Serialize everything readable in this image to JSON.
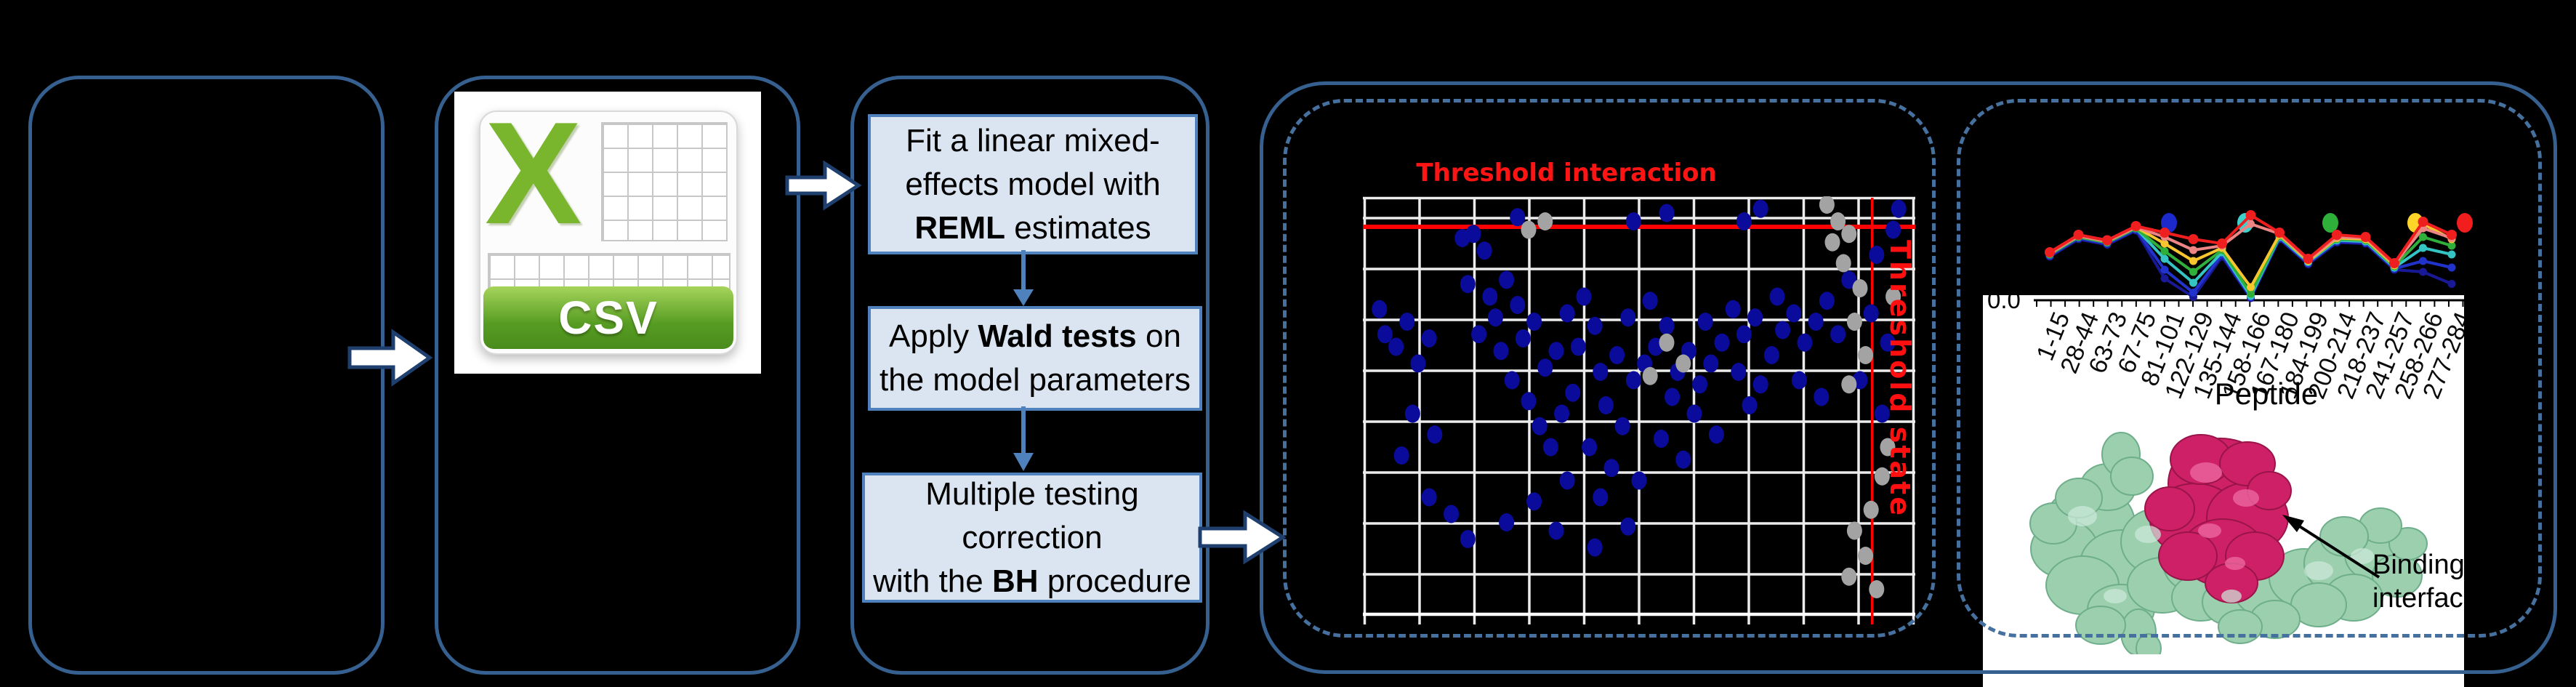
{
  "csv_icon": {
    "x_letter": "X",
    "label": "CSV"
  },
  "steps": {
    "step1": {
      "pre": "Fit a linear mixed-effects model with ",
      "bold": "REML",
      "post": " estimates"
    },
    "step2": {
      "pre": "Apply ",
      "bold": "Wald tests",
      "post": " on the model parameters"
    },
    "step3": {
      "line1": "Multiple testing",
      "line2": "correction",
      "line3_pre": "with the ",
      "line3_bold": "BH",
      "line3_post": " procedure"
    }
  },
  "interaction_panel": {
    "title": "Threshold interaction",
    "state_label": "Threshold state",
    "chart_data": {
      "type": "scatter",
      "grid": true,
      "background": "#000000",
      "threshold_lines": {
        "color": "#ff0000",
        "horizontal_y_pct": 7.3,
        "vertical_x_pct": 92.2
      },
      "series": [
        {
          "name": "blue-points",
          "color": "#0b0b9b",
          "points_pct": [
            [
              3,
              27
            ],
            [
              4,
              33
            ],
            [
              8,
              30
            ],
            [
              6,
              36
            ],
            [
              10,
              40
            ],
            [
              12,
              34
            ],
            [
              9,
              52
            ],
            [
              13,
              57
            ],
            [
              7,
              62
            ],
            [
              18,
              10
            ],
            [
              20,
              9
            ],
            [
              22,
              13
            ],
            [
              19,
              21
            ],
            [
              23,
              24
            ],
            [
              26,
              20
            ],
            [
              24,
              29
            ],
            [
              28,
              26
            ],
            [
              21,
              33
            ],
            [
              25,
              37
            ],
            [
              29,
              34
            ],
            [
              31,
              30
            ],
            [
              27,
              44
            ],
            [
              30,
              49
            ],
            [
              33,
              41
            ],
            [
              35,
              37
            ],
            [
              32,
              55
            ],
            [
              36,
              52
            ],
            [
              34,
              60
            ],
            [
              38,
              47
            ],
            [
              37,
              28
            ],
            [
              40,
              24
            ],
            [
              42,
              31
            ],
            [
              39,
              36
            ],
            [
              43,
              42
            ],
            [
              46,
              38
            ],
            [
              44,
              50
            ],
            [
              47,
              55
            ],
            [
              41,
              60
            ],
            [
              45,
              65
            ],
            [
              49,
              44
            ],
            [
              51,
              40
            ],
            [
              48,
              29
            ],
            [
              52,
              25
            ],
            [
              55,
              31
            ],
            [
              53,
              36
            ],
            [
              57,
              42
            ],
            [
              59,
              37
            ],
            [
              56,
              48
            ],
            [
              60,
              52
            ],
            [
              54,
              58
            ],
            [
              61,
              45
            ],
            [
              63,
              40
            ],
            [
              65,
              35
            ],
            [
              62,
              30
            ],
            [
              67,
              27
            ],
            [
              69,
              33
            ],
            [
              71,
              29
            ],
            [
              68,
              42
            ],
            [
              72,
              45
            ],
            [
              74,
              38
            ],
            [
              70,
              50
            ],
            [
              76,
              32
            ],
            [
              78,
              28
            ],
            [
              75,
              24
            ],
            [
              80,
              35
            ],
            [
              82,
              30
            ],
            [
              84,
              25
            ],
            [
              86,
              33
            ],
            [
              79,
              44
            ],
            [
              83,
              48
            ],
            [
              64,
              57
            ],
            [
              58,
              63
            ],
            [
              50,
              68
            ],
            [
              43,
              72
            ],
            [
              37,
              68
            ],
            [
              31,
              73
            ],
            [
              26,
              78
            ],
            [
              35,
              80
            ],
            [
              42,
              84
            ],
            [
              48,
              79
            ],
            [
              16,
              76
            ],
            [
              19,
              82
            ],
            [
              12,
              72
            ],
            [
              28,
              5
            ],
            [
              49,
              6
            ],
            [
              55,
              4
            ],
            [
              69,
              6
            ],
            [
              72,
              3
            ],
            [
              97,
              3
            ],
            [
              96,
              8
            ],
            [
              93,
              14
            ],
            [
              88,
              20
            ],
            [
              92,
              28
            ],
            [
              95,
              35
            ],
            [
              90,
              44
            ],
            [
              94,
              52
            ]
          ]
        },
        {
          "name": "gray-points",
          "color": "#a3a3a3",
          "points_pct": [
            [
              33,
              6
            ],
            [
              84,
              2
            ],
            [
              86,
              6
            ],
            [
              85,
              11
            ],
            [
              88,
              9
            ],
            [
              87,
              16
            ],
            [
              90,
              22
            ],
            [
              89,
              30
            ],
            [
              91,
              38
            ],
            [
              88,
              45
            ],
            [
              55,
              35
            ],
            [
              58,
              40
            ],
            [
              52,
              43
            ],
            [
              92,
              75
            ],
            [
              89,
              80
            ],
            [
              91,
              86
            ],
            [
              88,
              91
            ],
            [
              93,
              94
            ],
            [
              30,
              8
            ],
            [
              96,
              24
            ],
            [
              95,
              60
            ],
            [
              94,
              67
            ]
          ]
        }
      ]
    }
  },
  "uptake_panel": {
    "y_tick_label": "0.0",
    "x_axis_title": "Peptide",
    "annotation": {
      "line1": "Binding",
      "line2": "interface"
    },
    "legend_dot_colors": [
      "#1c2acc",
      "#3fd2cd",
      "#2fb03a",
      "#ffd428",
      "#f21d1d"
    ],
    "chart_data": {
      "type": "line",
      "categories": [
        "1-15",
        "28-44",
        "63-73",
        "67-75",
        "81-101",
        "122-129",
        "135-144",
        "158-166",
        "167-180",
        "184-199",
        "200-214",
        "218-237",
        "241-257",
        "258-266",
        "277-284"
      ],
      "ylim": [
        0,
        1
      ],
      "visible_y_tick": "0.0",
      "series": [
        {
          "name": "navy",
          "color": "#191998",
          "values": [
            0.4,
            0.56,
            0.51,
            0.64,
            0.2,
            0.03,
            0.4,
            0.02,
            0.56,
            0.33,
            0.53,
            0.52,
            0.28,
            0.26,
            0.15
          ]
        },
        {
          "name": "blue",
          "color": "#2233cc",
          "values": [
            0.41,
            0.57,
            0.52,
            0.65,
            0.28,
            0.07,
            0.42,
            0.03,
            0.57,
            0.34,
            0.54,
            0.53,
            0.29,
            0.36,
            0.3
          ]
        },
        {
          "name": "cyan",
          "color": "#35c4c4",
          "values": [
            0.42,
            0.58,
            0.53,
            0.66,
            0.38,
            0.16,
            0.44,
            0.04,
            0.58,
            0.35,
            0.55,
            0.54,
            0.3,
            0.48,
            0.42
          ]
        },
        {
          "name": "green",
          "color": "#2fb03a",
          "values": [
            0.42,
            0.58,
            0.53,
            0.66,
            0.45,
            0.26,
            0.46,
            0.06,
            0.59,
            0.36,
            0.56,
            0.55,
            0.31,
            0.58,
            0.5
          ]
        },
        {
          "name": "yellow",
          "color": "#f7c52e",
          "values": [
            0.43,
            0.59,
            0.54,
            0.67,
            0.52,
            0.36,
            0.48,
            0.12,
            0.6,
            0.36,
            0.57,
            0.56,
            0.32,
            0.7,
            0.56
          ]
        },
        {
          "name": "salmon",
          "color": "#ee8585",
          "values": [
            0.43,
            0.59,
            0.54,
            0.67,
            0.58,
            0.46,
            0.5,
            0.7,
            0.61,
            0.37,
            0.58,
            0.57,
            0.33,
            0.66,
            0.57
          ]
        },
        {
          "name": "red",
          "color": "#f01f1f",
          "values": [
            0.44,
            0.6,
            0.55,
            0.68,
            0.62,
            0.56,
            0.52,
            0.78,
            0.62,
            0.38,
            0.6,
            0.58,
            0.34,
            0.72,
            0.6
          ]
        }
      ]
    }
  }
}
